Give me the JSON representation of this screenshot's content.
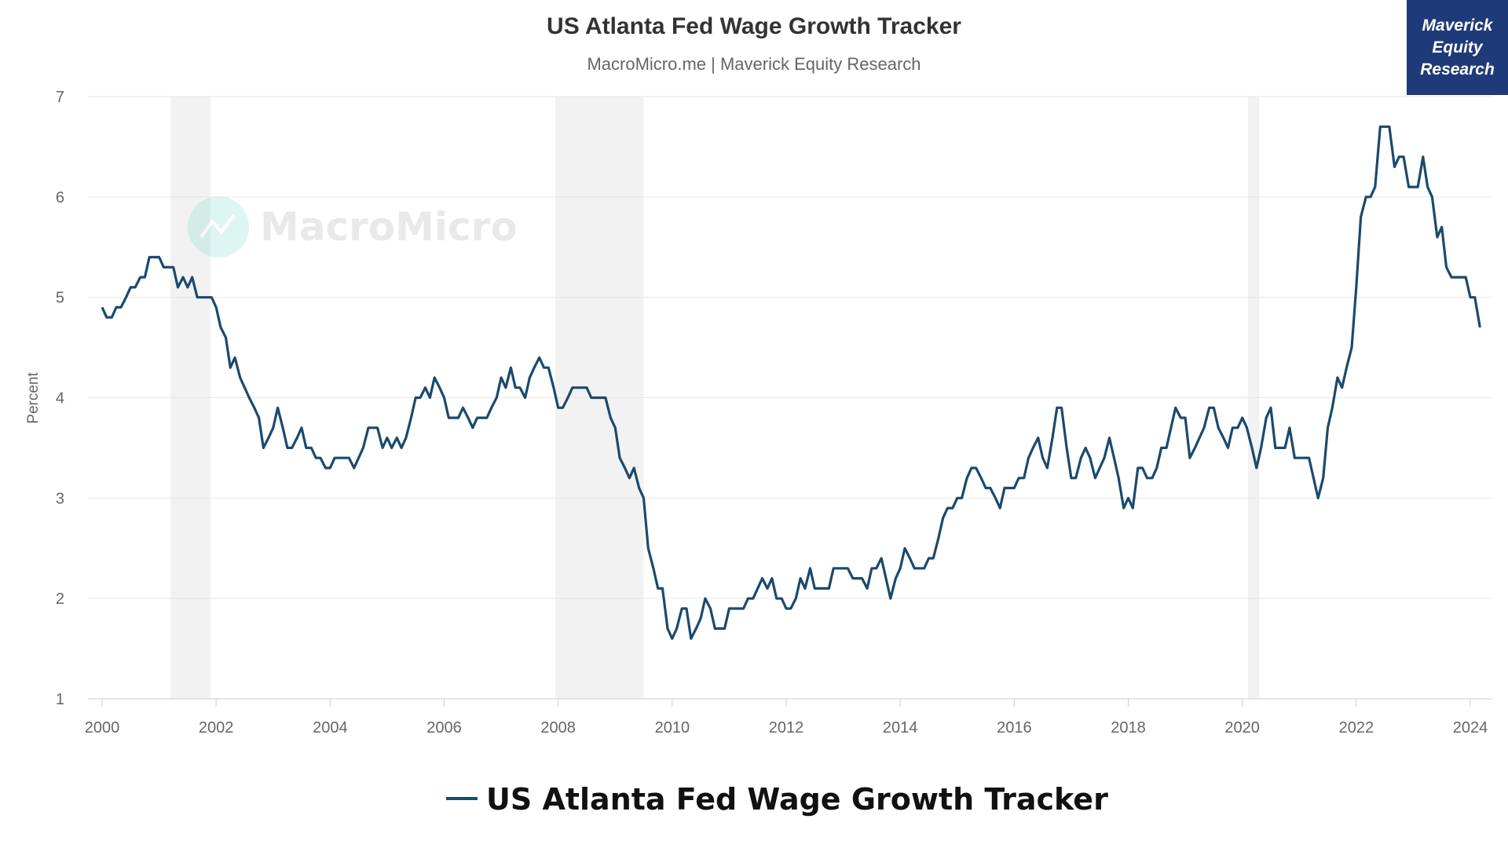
{
  "title": "US Atlanta Fed Wage Growth Tracker",
  "subtitle": "MacroMicro.me | Maverick Equity Research",
  "watermark": "MacroMicro",
  "badge": "Maverick\nEquity\nResearch",
  "colors": {
    "line": "#1a4a6e",
    "recession": "#f2f2f2",
    "grid": "#e6e6e6",
    "badge": "#1f3a78",
    "logo": "#7ad9c4"
  },
  "chart_data": {
    "type": "line",
    "title": "US Atlanta Fed Wage Growth Tracker",
    "subtitle": "MacroMicro.me | Maverick Equity Research",
    "ylabel": "Percent",
    "xlabel": "",
    "ylim": [
      1,
      7
    ],
    "xlim": [
      2000,
      2024.4
    ],
    "yticks": [
      1,
      2,
      3,
      4,
      5,
      6,
      7
    ],
    "xticks": [
      2000,
      2002,
      2004,
      2006,
      2008,
      2010,
      2012,
      2014,
      2016,
      2018,
      2020,
      2022,
      2024
    ],
    "grid": true,
    "legend": "bottom-center",
    "recessions": [
      [
        2001.2,
        2001.9
      ],
      [
        2007.95,
        2009.5
      ],
      [
        2020.1,
        2020.3
      ]
    ],
    "series": [
      {
        "name": "US Atlanta Fed Wage Growth Tracker",
        "x": [
          2000.0,
          2000.08,
          2000.17,
          2000.25,
          2000.33,
          2000.42,
          2000.5,
          2000.58,
          2000.67,
          2000.75,
          2000.83,
          2000.92,
          2001.0,
          2001.08,
          2001.17,
          2001.25,
          2001.33,
          2001.42,
          2001.5,
          2001.58,
          2001.67,
          2001.75,
          2001.83,
          2001.92,
          2002.0,
          2002.08,
          2002.17,
          2002.25,
          2002.33,
          2002.42,
          2002.5,
          2002.58,
          2002.67,
          2002.75,
          2002.83,
          2002.92,
          2003.0,
          2003.08,
          2003.17,
          2003.25,
          2003.33,
          2003.42,
          2003.5,
          2003.58,
          2003.67,
          2003.75,
          2003.83,
          2003.92,
          2004.0,
          2004.08,
          2004.17,
          2004.25,
          2004.33,
          2004.42,
          2004.5,
          2004.58,
          2004.67,
          2004.75,
          2004.83,
          2004.92,
          2005.0,
          2005.08,
          2005.17,
          2005.25,
          2005.33,
          2005.42,
          2005.5,
          2005.58,
          2005.67,
          2005.75,
          2005.83,
          2005.92,
          2006.0,
          2006.08,
          2006.17,
          2006.25,
          2006.33,
          2006.42,
          2006.5,
          2006.58,
          2006.67,
          2006.75,
          2006.83,
          2006.92,
          2007.0,
          2007.08,
          2007.17,
          2007.25,
          2007.33,
          2007.42,
          2007.5,
          2007.58,
          2007.67,
          2007.75,
          2007.83,
          2007.92,
          2008.0,
          2008.08,
          2008.17,
          2008.25,
          2008.33,
          2008.42,
          2008.5,
          2008.58,
          2008.67,
          2008.75,
          2008.83,
          2008.92,
          2009.0,
          2009.08,
          2009.17,
          2009.25,
          2009.33,
          2009.42,
          2009.5,
          2009.58,
          2009.67,
          2009.75,
          2009.83,
          2009.92,
          2010.0,
          2010.08,
          2010.17,
          2010.25,
          2010.33,
          2010.42,
          2010.5,
          2010.58,
          2010.67,
          2010.75,
          2010.83,
          2010.92,
          2011.0,
          2011.08,
          2011.17,
          2011.25,
          2011.33,
          2011.42,
          2011.5,
          2011.58,
          2011.67,
          2011.75,
          2011.83,
          2011.92,
          2012.0,
          2012.08,
          2012.17,
          2012.25,
          2012.33,
          2012.42,
          2012.5,
          2012.58,
          2012.67,
          2012.75,
          2012.83,
          2012.92,
          2013.0,
          2013.08,
          2013.17,
          2013.25,
          2013.33,
          2013.42,
          2013.5,
          2013.58,
          2013.67,
          2013.75,
          2013.83,
          2013.92,
          2014.0,
          2014.08,
          2014.17,
          2014.25,
          2014.33,
          2014.42,
          2014.5,
          2014.58,
          2014.67,
          2014.75,
          2014.83,
          2014.92,
          2015.0,
          2015.08,
          2015.17,
          2015.25,
          2015.33,
          2015.42,
          2015.5,
          2015.58,
          2015.67,
          2015.75,
          2015.83,
          2015.92,
          2016.0,
          2016.08,
          2016.17,
          2016.25,
          2016.33,
          2016.42,
          2016.5,
          2016.58,
          2016.67,
          2016.75,
          2016.83,
          2016.92,
          2017.0,
          2017.08,
          2017.17,
          2017.25,
          2017.33,
          2017.42,
          2017.5,
          2017.58,
          2017.67,
          2017.75,
          2017.83,
          2017.92,
          2018.0,
          2018.08,
          2018.17,
          2018.25,
          2018.33,
          2018.42,
          2018.5,
          2018.58,
          2018.67,
          2018.75,
          2018.83,
          2018.92,
          2019.0,
          2019.08,
          2019.17,
          2019.25,
          2019.33,
          2019.42,
          2019.5,
          2019.58,
          2019.67,
          2019.75,
          2019.83,
          2019.92,
          2020.0,
          2020.08,
          2020.17,
          2020.25,
          2020.33,
          2020.42,
          2020.5,
          2020.58,
          2020.67,
          2020.75,
          2020.83,
          2020.92,
          2021.0,
          2021.08,
          2021.17,
          2021.25,
          2021.33,
          2021.42,
          2021.5,
          2021.58,
          2021.67,
          2021.75,
          2021.83,
          2021.92,
          2022.0,
          2022.08,
          2022.17,
          2022.25,
          2022.33,
          2022.42,
          2022.5,
          2022.58,
          2022.67,
          2022.75,
          2022.83,
          2022.92,
          2023.0,
          2023.08,
          2023.17,
          2023.25,
          2023.33,
          2023.42,
          2023.5,
          2023.58,
          2023.67,
          2023.75,
          2023.83,
          2023.92,
          2024.0,
          2024.08,
          2024.17
        ],
        "values": [
          4.9,
          4.8,
          4.8,
          4.9,
          4.9,
          5.0,
          5.1,
          5.1,
          5.2,
          5.2,
          5.4,
          5.4,
          5.4,
          5.3,
          5.3,
          5.3,
          5.1,
          5.2,
          5.1,
          5.2,
          5.0,
          5.0,
          5.0,
          5.0,
          4.9,
          4.7,
          4.6,
          4.3,
          4.4,
          4.2,
          4.1,
          4.0,
          3.9,
          3.8,
          3.5,
          3.6,
          3.7,
          3.9,
          3.7,
          3.5,
          3.5,
          3.6,
          3.7,
          3.5,
          3.5,
          3.4,
          3.4,
          3.3,
          3.3,
          3.4,
          3.4,
          3.4,
          3.4,
          3.3,
          3.4,
          3.5,
          3.7,
          3.7,
          3.7,
          3.5,
          3.6,
          3.5,
          3.6,
          3.5,
          3.6,
          3.8,
          4.0,
          4.0,
          4.1,
          4.0,
          4.2,
          4.1,
          4.0,
          3.8,
          3.8,
          3.8,
          3.9,
          3.8,
          3.7,
          3.8,
          3.8,
          3.8,
          3.9,
          4.0,
          4.2,
          4.1,
          4.3,
          4.1,
          4.1,
          4.0,
          4.2,
          4.3,
          4.4,
          4.3,
          4.3,
          4.1,
          3.9,
          3.9,
          4.0,
          4.1,
          4.1,
          4.1,
          4.1,
          4.0,
          4.0,
          4.0,
          4.0,
          3.8,
          3.7,
          3.4,
          3.3,
          3.2,
          3.3,
          3.1,
          3.0,
          2.5,
          2.3,
          2.1,
          2.1,
          1.7,
          1.6,
          1.7,
          1.9,
          1.9,
          1.6,
          1.7,
          1.8,
          2.0,
          1.9,
          1.7,
          1.7,
          1.7,
          1.9,
          1.9,
          1.9,
          1.9,
          2.0,
          2.0,
          2.1,
          2.2,
          2.1,
          2.2,
          2.0,
          2.0,
          1.9,
          1.9,
          2.0,
          2.2,
          2.1,
          2.3,
          2.1,
          2.1,
          2.1,
          2.1,
          2.3,
          2.3,
          2.3,
          2.3,
          2.2,
          2.2,
          2.2,
          2.1,
          2.3,
          2.3,
          2.4,
          2.2,
          2.0,
          2.2,
          2.3,
          2.5,
          2.4,
          2.3,
          2.3,
          2.3,
          2.4,
          2.4,
          2.6,
          2.8,
          2.9,
          2.9,
          3.0,
          3.0,
          3.2,
          3.3,
          3.3,
          3.2,
          3.1,
          3.1,
          3.0,
          2.9,
          3.1,
          3.1,
          3.1,
          3.2,
          3.2,
          3.4,
          3.5,
          3.6,
          3.4,
          3.3,
          3.6,
          3.9,
          3.9,
          3.5,
          3.2,
          3.2,
          3.4,
          3.5,
          3.4,
          3.2,
          3.3,
          3.4,
          3.6,
          3.4,
          3.2,
          2.9,
          3.0,
          2.9,
          3.3,
          3.3,
          3.2,
          3.2,
          3.3,
          3.5,
          3.5,
          3.7,
          3.9,
          3.8,
          3.8,
          3.4,
          3.5,
          3.6,
          3.7,
          3.9,
          3.9,
          3.7,
          3.6,
          3.5,
          3.7,
          3.7,
          3.8,
          3.7,
          3.5,
          3.3,
          3.5,
          3.8,
          3.9,
          3.5,
          3.5,
          3.5,
          3.7,
          3.4,
          3.4,
          3.4,
          3.4,
          3.2,
          3.0,
          3.2,
          3.7,
          3.9,
          4.2,
          4.1,
          4.3,
          4.5,
          5.1,
          5.8,
          6.0,
          6.0,
          6.1,
          6.7,
          6.7,
          6.7,
          6.3,
          6.4,
          6.4,
          6.1,
          6.1,
          6.1,
          6.4,
          6.1,
          6.0,
          5.6,
          5.7,
          5.3,
          5.2,
          5.2,
          5.2,
          5.2,
          5.0,
          5.0,
          4.7
        ]
      }
    ]
  }
}
